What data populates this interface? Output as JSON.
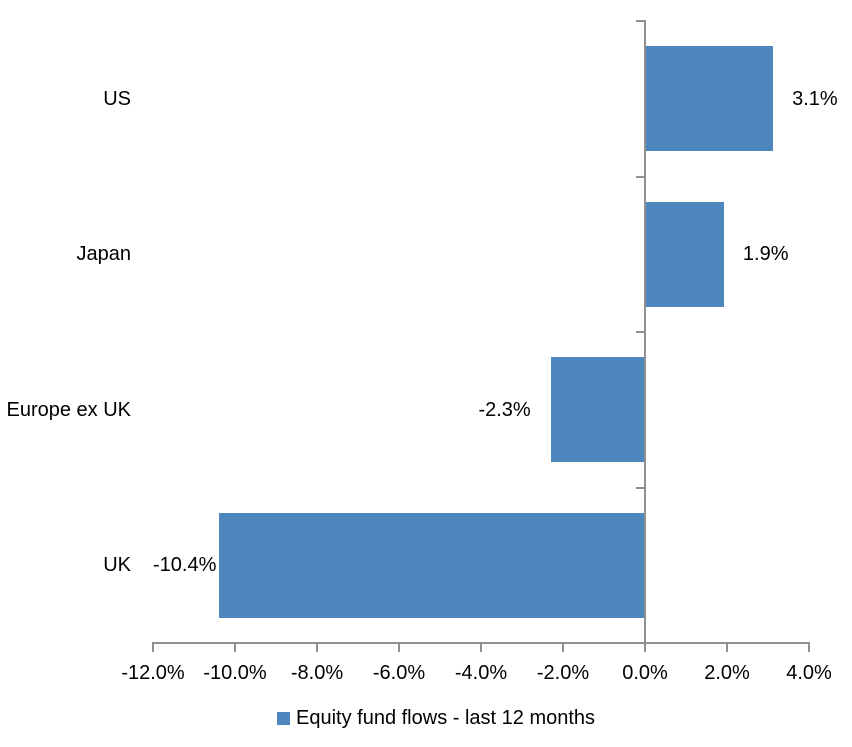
{
  "chart_data": {
    "type": "bar",
    "orientation": "horizontal",
    "title": "",
    "xlabel": "",
    "ylabel": "",
    "categories": [
      "US",
      "Japan",
      "Europe ex UK",
      "UK"
    ],
    "series": [
      {
        "name": "Equity fund flows - last 12 months",
        "values": [
          3.1,
          1.9,
          -2.3,
          -10.4
        ],
        "value_labels": [
          "3.1%",
          "1.9%",
          "-2.3%",
          "-10.4%"
        ]
      }
    ],
    "xlim": [
      -12.0,
      4.0
    ],
    "x_tick_values": [
      -12,
      -10,
      -8,
      -6,
      -4,
      -2,
      0,
      2,
      4
    ],
    "x_tick_labels": [
      "-12.0%",
      "-10.0%",
      "-8.0%",
      "-6.0%",
      "-4.0%",
      "-2.0%",
      "0.0%",
      "2.0%",
      "4.0%"
    ],
    "grid": false,
    "legend_position": "bottom",
    "legend": [
      "Equity fund flows - last 12 months"
    ],
    "colors": {
      "bar": "#4E86BE",
      "axis": "#909090",
      "text": "#000000",
      "background": "#FFFFFF"
    }
  }
}
